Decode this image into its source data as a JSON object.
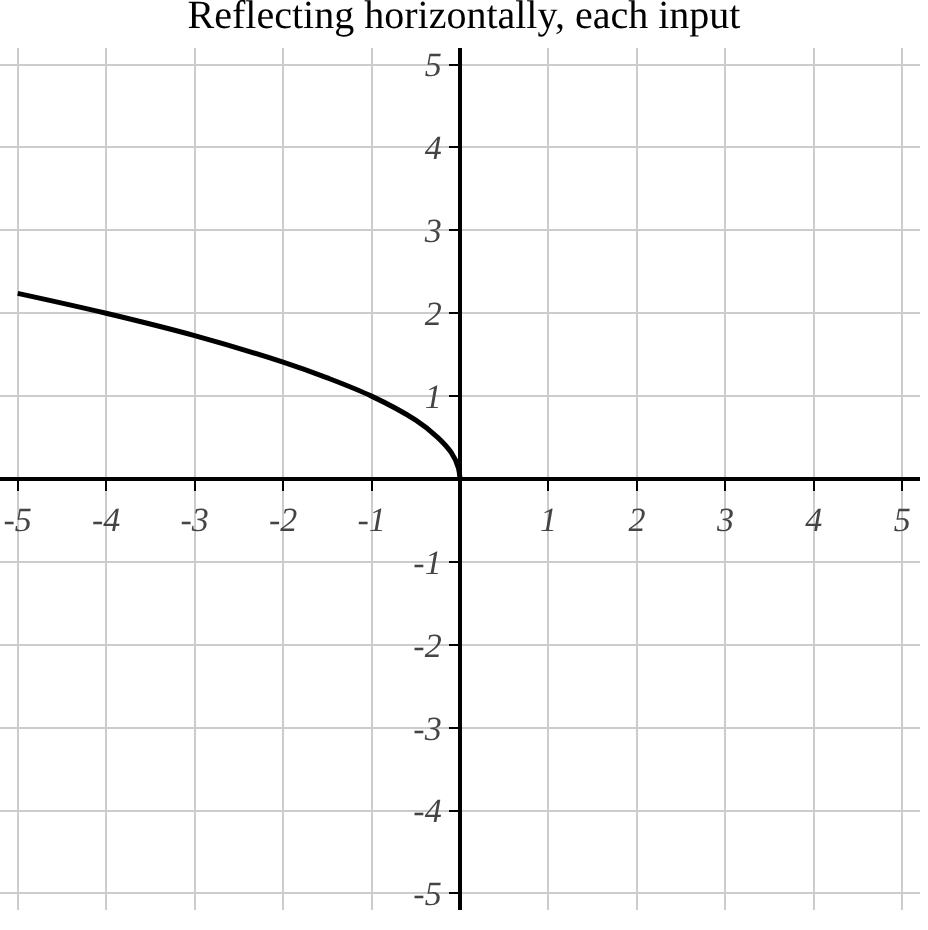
{
  "chart_data": {
    "type": "line",
    "title": "Reflecting horizontally, each input",
    "x": [
      -5,
      -4,
      -3,
      -2,
      -1.5,
      -1,
      -0.5,
      -0.25,
      -0.1,
      -0.02,
      0
    ],
    "series": [
      {
        "color": "#000000",
        "values": [
          2.24,
          2,
          1.73,
          1.41,
          1.22,
          1,
          0.71,
          0.5,
          0.32,
          0.14,
          0
        ]
      }
    ],
    "xlim": [
      -5.2,
      5.2
    ],
    "ylim": [
      -5.2,
      5.2
    ],
    "xticks": [
      -5,
      -4,
      -3,
      -2,
      -1,
      {
        "value": 0,
        "label": null
      },
      1,
      2,
      3,
      4,
      5
    ],
    "yticks": [
      -5,
      -4,
      -3,
      -2,
      -1,
      {
        "value": 0,
        "label": null
      },
      1,
      2,
      3,
      4,
      5
    ],
    "grid": true,
    "marker": "none",
    "line_style": "solid"
  }
}
